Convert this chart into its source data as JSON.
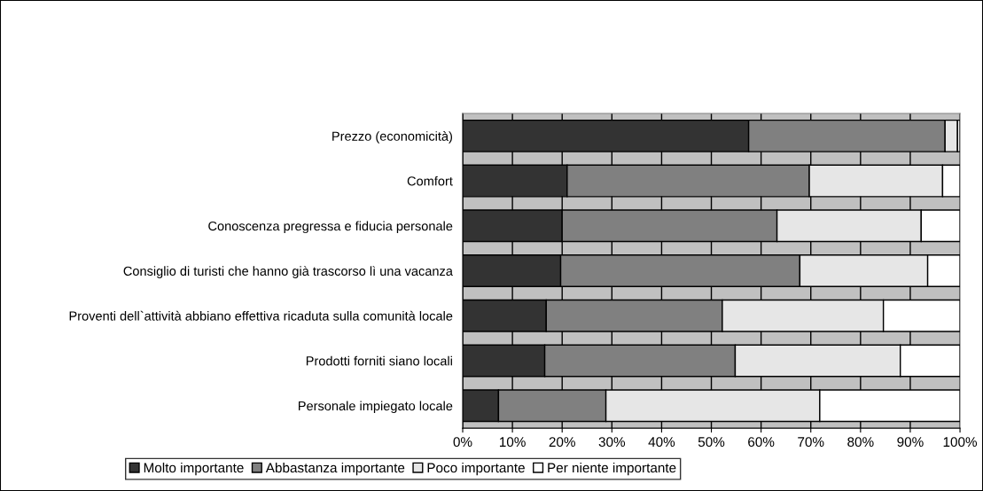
{
  "chart_data": {
    "type": "bar",
    "orientation": "horizontal",
    "stacked": true,
    "categories": [
      "Prezzo (economicità)",
      "Comfort",
      "Conoscenza pregressa e fiducia personale",
      "Consiglio di turisti che hanno già trascorso lì una vacanza",
      "Proventi dell`attività abbiano effettiva ricaduta sulla comunità locale",
      "Prodotti forniti siano locali",
      "Personale impiegato locale"
    ],
    "series": [
      {
        "name": "Molto importante",
        "color": "#333333",
        "values": [
          57.5,
          21,
          20,
          19.7,
          16.8,
          16.5,
          7.2
        ]
      },
      {
        "name": "Abbastanza importante",
        "color": "#808080",
        "values": [
          39.5,
          48.7,
          43.2,
          48.1,
          35.4,
          38.3,
          21.6
        ]
      },
      {
        "name": "Poco importante",
        "color": "#e6e6e6",
        "values": [
          2.5,
          26.8,
          29,
          25.7,
          32.4,
          33.2,
          43
        ]
      },
      {
        "name": "Per niente importante",
        "color": "#ffffff",
        "values": [
          0.5,
          3.5,
          7.8,
          6.5,
          15.4,
          12,
          28.2
        ]
      }
    ],
    "xlim": [
      0,
      100
    ],
    "xticks": [
      {
        "value": 0,
        "label": "0%"
      },
      {
        "value": 10,
        "label": "10%"
      },
      {
        "value": 20,
        "label": "20%"
      },
      {
        "value": 30,
        "label": "30%"
      },
      {
        "value": 40,
        "label": "40%"
      },
      {
        "value": 50,
        "label": "50%"
      },
      {
        "value": 60,
        "label": "60%"
      },
      {
        "value": 70,
        "label": "70%"
      },
      {
        "value": 80,
        "label": "80%"
      },
      {
        "value": 90,
        "label": "90%"
      },
      {
        "value": 100,
        "label": "100%"
      }
    ],
    "grid": "x",
    "legend": "bottom"
  }
}
